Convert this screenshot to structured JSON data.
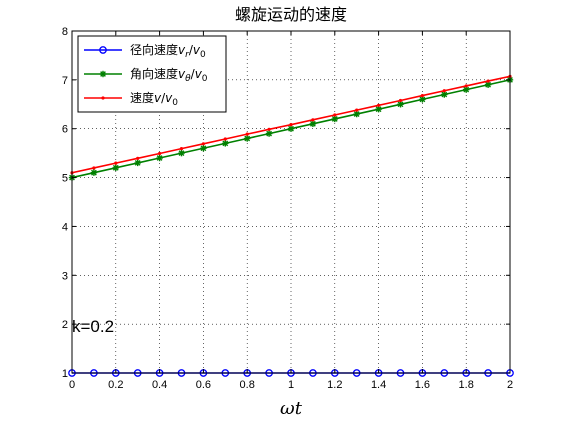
{
  "chart_data": {
    "type": "line",
    "title": "螺旋运动的速度",
    "xlabel": "ωt",
    "ylabel": "",
    "xlim": [
      0,
      2
    ],
    "ylim": [
      1,
      8
    ],
    "x_ticks": [
      "0",
      "0.2",
      "0.4",
      "0.6",
      "0.8",
      "1",
      "1.2",
      "1.4",
      "1.6",
      "1.8",
      "2"
    ],
    "y_ticks": [
      "1",
      "2",
      "3",
      "4",
      "5",
      "6",
      "7",
      "8"
    ],
    "grid": true,
    "legend_position": "top-left",
    "annotation": "k=0.2",
    "x": [
      0,
      0.1,
      0.2,
      0.3,
      0.4,
      0.5,
      0.6,
      0.7,
      0.8,
      0.9,
      1.0,
      1.1,
      1.2,
      1.3,
      1.4,
      1.5,
      1.6,
      1.7,
      1.8,
      1.9,
      2.0
    ],
    "series": [
      {
        "name": "径向速度v_r/v_0",
        "legend_main": "径向速度",
        "legend_sym": "v",
        "legend_sub1": "r",
        "legend_sub2": "0",
        "color": "#0000ff",
        "marker": "circle",
        "values": [
          1,
          1,
          1,
          1,
          1,
          1,
          1,
          1,
          1,
          1,
          1,
          1,
          1,
          1,
          1,
          1,
          1,
          1,
          1,
          1,
          1
        ]
      },
      {
        "name": "角向速度v_θ/v_0",
        "legend_main": "角向速度",
        "legend_sym": "v",
        "legend_sub1": "θ",
        "legend_sub2": "0",
        "color": "#008000",
        "marker": "star",
        "values": [
          5.0,
          5.1,
          5.2,
          5.3,
          5.4,
          5.5,
          5.6,
          5.7,
          5.8,
          5.9,
          6.0,
          6.1,
          6.2,
          6.3,
          6.4,
          6.5,
          6.6,
          6.7,
          6.8,
          6.9,
          7.0
        ]
      },
      {
        "name": "速度v/v_0",
        "legend_main": "速度",
        "legend_sym": "v",
        "legend_sub1": "",
        "legend_sub2": "0",
        "color": "#ff0000",
        "marker": "point",
        "values": [
          5.099,
          5.197,
          5.296,
          5.394,
          5.493,
          5.592,
          5.691,
          5.79,
          5.889,
          5.988,
          6.083,
          6.182,
          6.281,
          6.38,
          6.479,
          6.578,
          6.678,
          6.777,
          6.876,
          6.975,
          7.071
        ]
      }
    ]
  }
}
